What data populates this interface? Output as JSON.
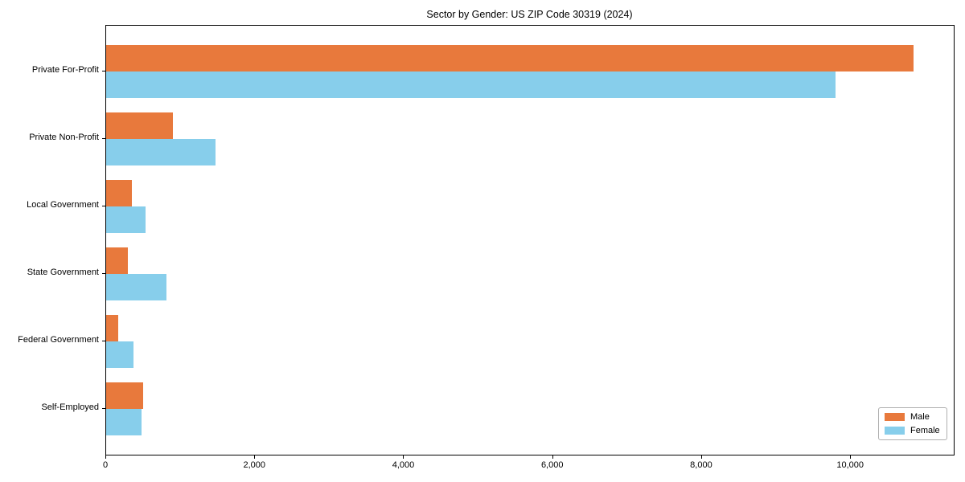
{
  "chart_data": {
    "type": "bar",
    "orientation": "horizontal",
    "title": "Sector by Gender: US ZIP Code 30319 (2024)",
    "categories": [
      "Private For-Profit",
      "Private Non-Profit",
      "Local Government",
      "State Government",
      "Federal Government",
      "Self-Employed"
    ],
    "series": [
      {
        "name": "Male",
        "color": "#e8793c",
        "values": [
          10840,
          900,
          345,
          295,
          160,
          495
        ]
      },
      {
        "name": "Female",
        "color": "#87ceeb",
        "values": [
          9790,
          1465,
          530,
          815,
          365,
          475
        ]
      }
    ],
    "xlabel": "",
    "ylabel": "",
    "xlim": [
      0,
      11380
    ],
    "xticks": [
      {
        "value": 0,
        "label": "0"
      },
      {
        "value": 2000,
        "label": "2,000"
      },
      {
        "value": 4000,
        "label": "4,000"
      },
      {
        "value": 6000,
        "label": "6,000"
      },
      {
        "value": 8000,
        "label": "8,000"
      },
      {
        "value": 10000,
        "label": "10,000"
      }
    ],
    "grid": false,
    "legend_position": "lower right"
  },
  "style": {
    "frame_color": "#000000",
    "background": "#ffffff"
  }
}
